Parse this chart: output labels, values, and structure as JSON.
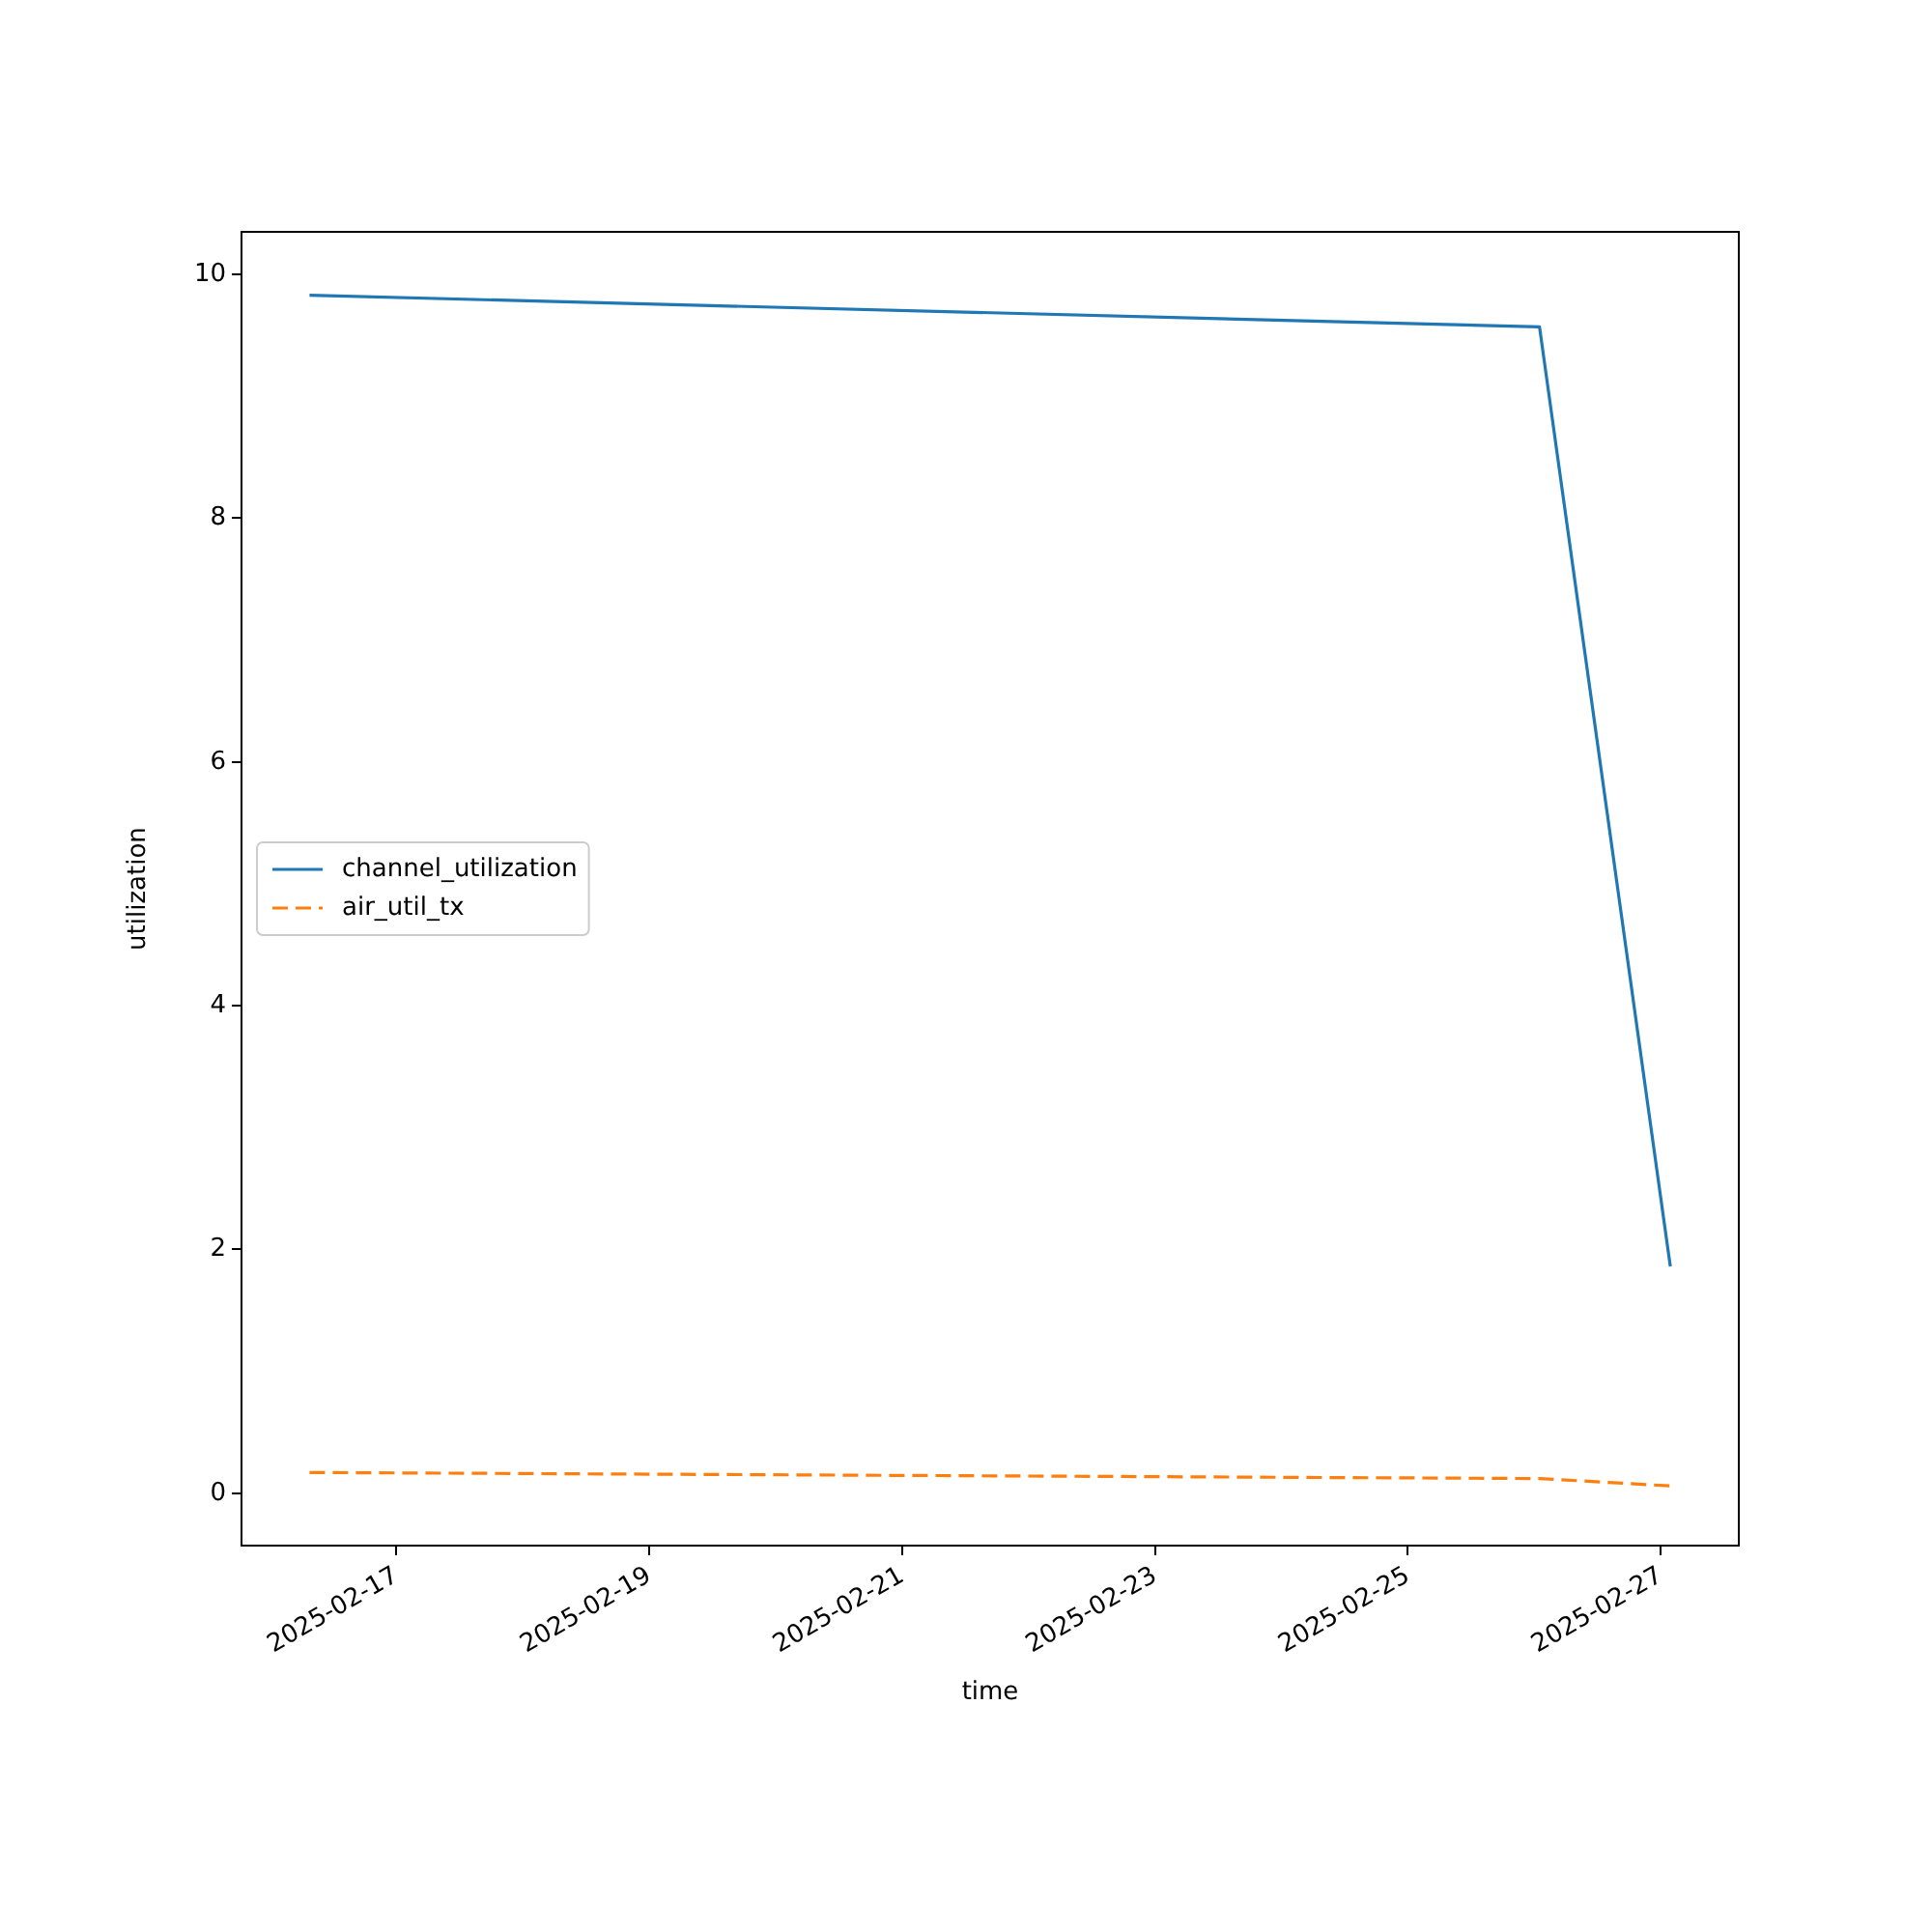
{
  "chart_data": {
    "type": "line",
    "xlabel": "time",
    "ylabel": "utilization",
    "x": [
      "2025-02-16T07:30",
      "2025-02-26T01:00",
      "2025-02-27T01:50"
    ],
    "series": [
      {
        "name": "channel_utilization",
        "color": "#1f77b4",
        "line_style": "solid",
        "values": [
          9.83,
          9.57,
          1.86
        ]
      },
      {
        "name": "air_util_tx",
        "color": "#ff7f0e",
        "line_style": "dashed",
        "values": [
          0.17,
          0.12,
          0.06
        ]
      }
    ],
    "xlim": [
      "2025-02-15T18:35",
      "2025-02-27T14:50"
    ],
    "xticks": [
      "2025-02-17",
      "2025-02-19",
      "2025-02-21",
      "2025-02-23",
      "2025-02-25",
      "2025-02-27"
    ],
    "ylim": [
      -0.43,
      10.35
    ],
    "yticks": [
      0,
      2,
      4,
      6,
      8,
      10
    ],
    "grid": false,
    "legend": "left",
    "marker": "none"
  }
}
